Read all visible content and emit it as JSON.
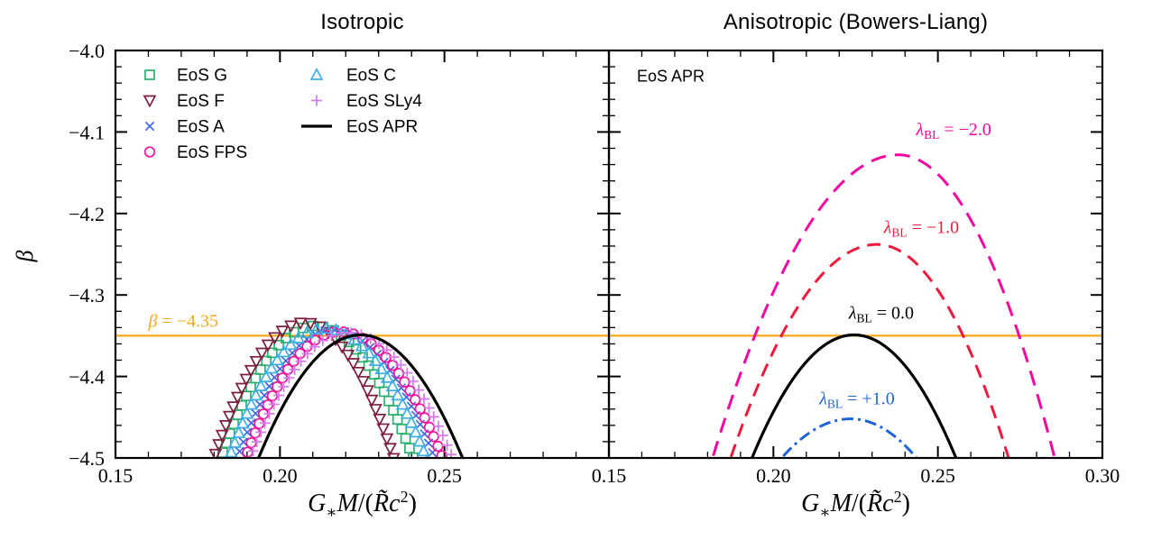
{
  "figure": {
    "background": "#ffffff",
    "axis_color": "#000000"
  },
  "chart_data": [
    {
      "panel": "isotropic",
      "type": "scatter",
      "title": "Isotropic",
      "xlabel_plain": "G∗M/(R̃c²)",
      "xlabel_parts": {
        "G": "G",
        "star": "∗",
        "M": "M",
        "open": "/(",
        "Rtilde": "R̃",
        "c": "c",
        "exp": "2",
        "close": ")"
      },
      "ylabel": "β",
      "xlim": [
        0.15,
        0.3
      ],
      "ylim": [
        -4.5,
        -4.0
      ],
      "xticks_labeled": [
        0.15,
        0.2,
        0.25
      ],
      "yticks_labeled": [
        -4.0,
        -4.1,
        -4.2,
        -4.3,
        -4.4,
        -4.5
      ],
      "x_minor_step": 0.01,
      "y_minor_step": 0.02,
      "hline": {
        "beta": -4.35,
        "color": "#F7A81B",
        "label": {
          "sym": "β",
          "rest": " = −4.35"
        },
        "label_x": 0.16,
        "label_beta": -4.339
      },
      "series": [
        {
          "id": "eos-g",
          "name": "EoS G",
          "marker": "square",
          "color": "#2BB06E",
          "peak_x": 0.2105,
          "peak_beta": -4.338,
          "bottom_left_x": 0.182,
          "bottom_right_x": 0.2405
        },
        {
          "id": "eos-f",
          "name": "EoS F",
          "marker": "triangle-down",
          "color": "#7E1E3C",
          "peak_x": 0.2075,
          "peak_beta": -4.334,
          "bottom_left_x": 0.18,
          "bottom_right_x": 0.2345
        },
        {
          "id": "eos-a",
          "name": "EoS A",
          "marker": "x",
          "color": "#4169E1",
          "peak_x": 0.216,
          "peak_beta": -4.343,
          "bottom_left_x": 0.187,
          "bottom_right_x": 0.247
        },
        {
          "id": "eos-fps",
          "name": "EoS FPS",
          "marker": "circle",
          "color": "#F0169B",
          "peak_x": 0.218,
          "peak_beta": -4.345,
          "bottom_left_x": 0.1895,
          "bottom_right_x": 0.2495
        },
        {
          "id": "eos-c",
          "name": "EoS C",
          "marker": "triangle-up",
          "color": "#3FAEE8",
          "peak_x": 0.2135,
          "peak_beta": -4.341,
          "bottom_left_x": 0.1845,
          "bottom_right_x": 0.2445
        },
        {
          "id": "eos-sly4",
          "name": "EoS SLy4",
          "marker": "plus",
          "color": "#D478EC",
          "peak_x": 0.2205,
          "peak_beta": -4.346,
          "bottom_left_x": 0.191,
          "bottom_right_x": 0.2525
        },
        {
          "id": "eos-apr",
          "name": "EoS APR",
          "marker": "line",
          "color": "#000000",
          "peak_x": 0.2245,
          "peak_beta": -4.349,
          "bottom_left_x": 0.1935,
          "bottom_right_x": 0.2555
        }
      ],
      "legend": {
        "columns": [
          [
            "eos-g",
            "eos-f",
            "eos-a",
            "eos-fps"
          ],
          [
            "eos-c",
            "eos-sly4",
            "eos-apr"
          ]
        ]
      }
    },
    {
      "panel": "anisotropic-bowers-liang",
      "type": "line",
      "title": "Anisotropic (Bowers-Liang)",
      "annotation": "EoS APR",
      "annotation_x": 0.1585,
      "annotation_beta": -4.038,
      "xlabel_plain": "G∗M/(R̃c²)",
      "xlabel_parts": {
        "G": "G",
        "star": "∗",
        "M": "M",
        "open": "/(",
        "Rtilde": "R̃",
        "c": "c",
        "exp": "2",
        "close": ")"
      },
      "xlim": [
        0.15,
        0.3
      ],
      "ylim": [
        -4.5,
        -4.0
      ],
      "xticks_labeled": [
        0.15,
        0.2,
        0.25,
        0.3
      ],
      "x_minor_step": 0.01,
      "y_minor_step": 0.02,
      "hline": {
        "beta": -4.35,
        "color": "#F7A81B"
      },
      "series": [
        {
          "id": "lambda-bl-minus-2",
          "name": "λBL = −2.0",
          "label": {
            "sym": "λ",
            "sub": "BL",
            "rest": " = −2.0"
          },
          "label_x": 0.2548,
          "label_beta": -4.104,
          "linestyle": "dashed-long",
          "color": "#F2079F",
          "peak_x": 0.238,
          "peak_beta": -4.128,
          "bottom_left_x": 0.1815,
          "bottom_right_x": 0.2855
        },
        {
          "id": "lambda-bl-minus-1",
          "name": "λBL = −1.0",
          "label": {
            "sym": "λ",
            "sub": "BL",
            "rest": " = −1.0"
          },
          "label_x": 0.245,
          "label_beta": -4.224,
          "linestyle": "dashed",
          "color": "#EF1A3C",
          "peak_x": 0.2315,
          "peak_beta": -4.238,
          "bottom_left_x": 0.187,
          "bottom_right_x": 0.2715
        },
        {
          "id": "lambda-bl-0",
          "name": "λBL = 0.0",
          "label": {
            "sym": "λ",
            "sub": "BL",
            "rest": " = 0.0"
          },
          "label_x": 0.2328,
          "label_beta": -4.329,
          "linestyle": "solid",
          "color": "#000000",
          "peak_x": 0.2245,
          "peak_beta": -4.349,
          "bottom_left_x": 0.1935,
          "bottom_right_x": 0.2555
        },
        {
          "id": "lambda-bl-plus-1",
          "name": "λBL = +1.0",
          "label": {
            "sym": "λ",
            "sub": "BL",
            "rest": " = +1.0"
          },
          "label_x": 0.2254,
          "label_beta": -4.434,
          "linestyle": "dashdot",
          "color": "#1F63DB",
          "peak_x": 0.2235,
          "peak_beta": -4.452,
          "bottom_left_x": 0.2025,
          "bottom_right_x": 0.2435
        }
      ]
    }
  ]
}
